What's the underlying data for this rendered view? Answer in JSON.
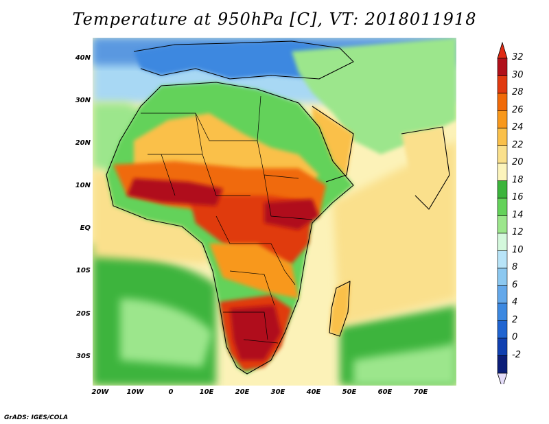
{
  "title": "Temperature at 950hPa [C], VT: 2018011918",
  "credit": "GrADS: IGES/COLA",
  "map": {
    "lat_labels": [
      "40N",
      "30N",
      "20N",
      "10N",
      "EQ",
      "10S",
      "20S",
      "30S"
    ],
    "lon_labels": [
      "20W",
      "10W",
      "0",
      "10E",
      "20E",
      "30E",
      "40E",
      "50E",
      "60E",
      "70E"
    ]
  },
  "colorbar": {
    "labels": [
      "32",
      "30",
      "28",
      "26",
      "24",
      "22",
      "20",
      "18",
      "16",
      "14",
      "12",
      "10",
      "8",
      "6",
      "4",
      "2",
      "0",
      "-2"
    ],
    "colors": [
      "#b0101a",
      "#e03a10",
      "#f06a08",
      "#f8981c",
      "#fac04a",
      "#fae08c",
      "#fcf4bc",
      "#3cb43c",
      "#64d25a",
      "#9ce68c",
      "#d4f8dc",
      "#b8e4f8",
      "#8cc8f0",
      "#64a8ea",
      "#3c88e0",
      "#2064d0",
      "#1040b0",
      "#0c1e78"
    ],
    "top_arrow_color": "#e02a14",
    "bottom_arrow_color": "#e4dcf8"
  }
}
